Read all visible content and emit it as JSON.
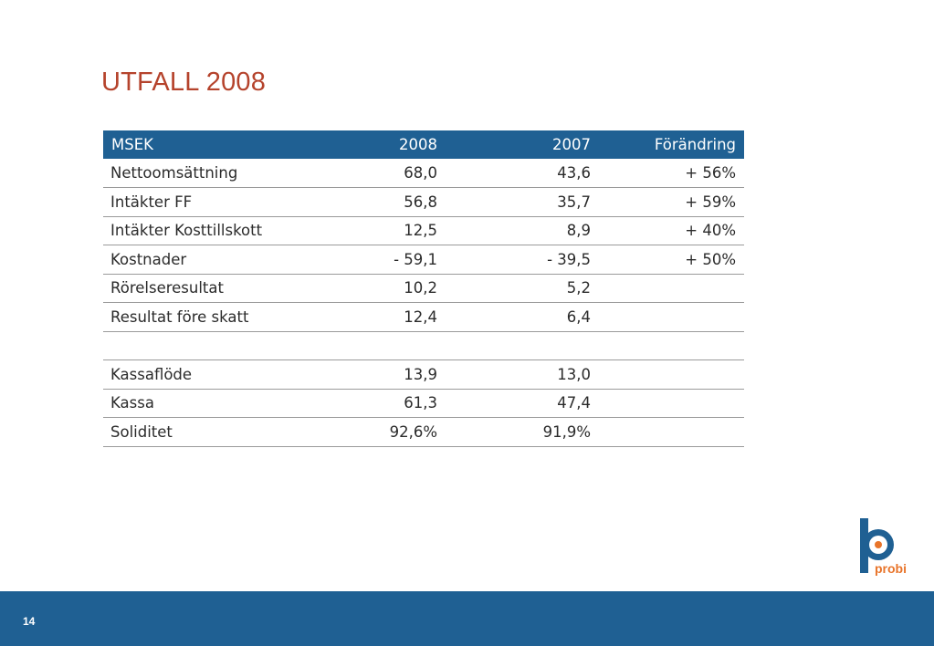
{
  "title": "UTFALL 2008",
  "table": {
    "headers": [
      "MSEK",
      "2008",
      "2007",
      "Förändring"
    ],
    "rows": [
      [
        "Nettoomsättning",
        "68,0",
        "43,6",
        "+ 56%"
      ],
      [
        "Intäkter FF",
        "56,8",
        "35,7",
        "+ 59%"
      ],
      [
        "Intäkter Kosttillskott",
        "12,5",
        "8,9",
        "+ 40%"
      ],
      [
        "Kostnader",
        "- 59,1",
        "- 39,5",
        "+ 50%"
      ],
      [
        "Rörelseresultat",
        "10,2",
        "5,2",
        ""
      ],
      [
        "Resultat före skatt",
        "12,4",
        "6,4",
        ""
      ],
      [
        "",
        "",
        "",
        ""
      ],
      [
        "Kassaflöde",
        "13,9",
        "13,0",
        ""
      ],
      [
        "Kassa",
        "61,3",
        "47,4",
        ""
      ],
      [
        "Soliditet",
        "92,6%",
        "91,9%",
        ""
      ]
    ]
  },
  "logo": {
    "text": "probi",
    "icon": "probi-logo-icon"
  },
  "footer": {
    "page_number": "14"
  },
  "colors": {
    "title": "#b5432c",
    "brand_blue": "#1f6093",
    "logo_orange": "#e8742a"
  }
}
